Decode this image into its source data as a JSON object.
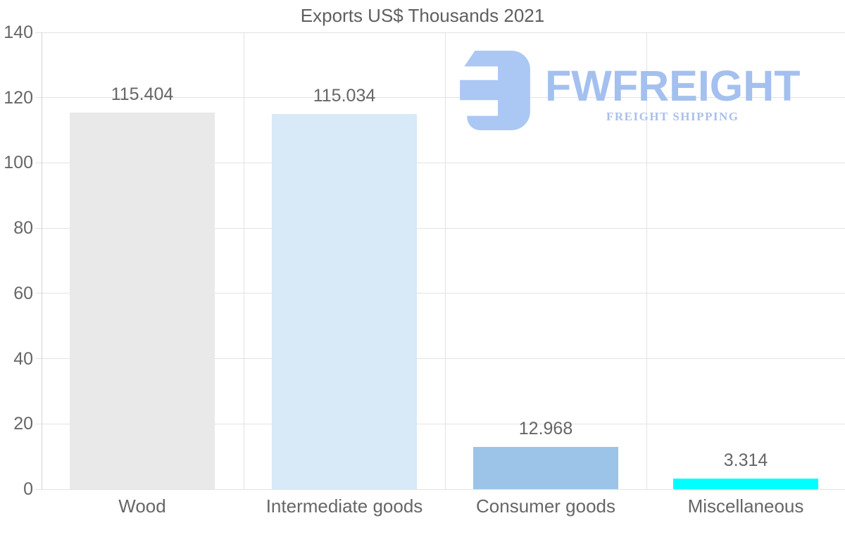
{
  "chart_data": {
    "type": "bar",
    "title": "Exports US$ Thousands 2021",
    "categories": [
      "Wood",
      "Intermediate goods",
      "Consumer goods",
      "Miscellaneous"
    ],
    "values": [
      115.404,
      115.034,
      12.968,
      3.314
    ],
    "value_labels": [
      "115.404",
      "115.034",
      "12.968",
      "3.314"
    ],
    "bar_colors": [
      "#e9e9e9",
      "#d8e9f8",
      "#9bc4e8",
      "#00ffff"
    ],
    "xlabel": "",
    "ylabel": "",
    "ylim": [
      0,
      140
    ],
    "yticks": [
      0,
      20,
      40,
      60,
      80,
      100,
      120,
      140
    ],
    "grid": "horizontal gridlines at each y tick, vertical gridlines at category boundaries",
    "legend": "none"
  },
  "watermark": {
    "brand": "FWFREIGHT",
    "tagline": "FREIGHT SHIPPING",
    "icon": "fwfreight-logo-icon",
    "icon_color": "#abc7f3",
    "brand_color": "#a4c0ef",
    "tagline_color": "#aac0ea"
  },
  "colors": {
    "text": "#666666",
    "title_text": "#5f5f5f",
    "gridline": "#e3e3e3",
    "axis_line": "#d2d2d2",
    "background": "#ffffff"
  }
}
